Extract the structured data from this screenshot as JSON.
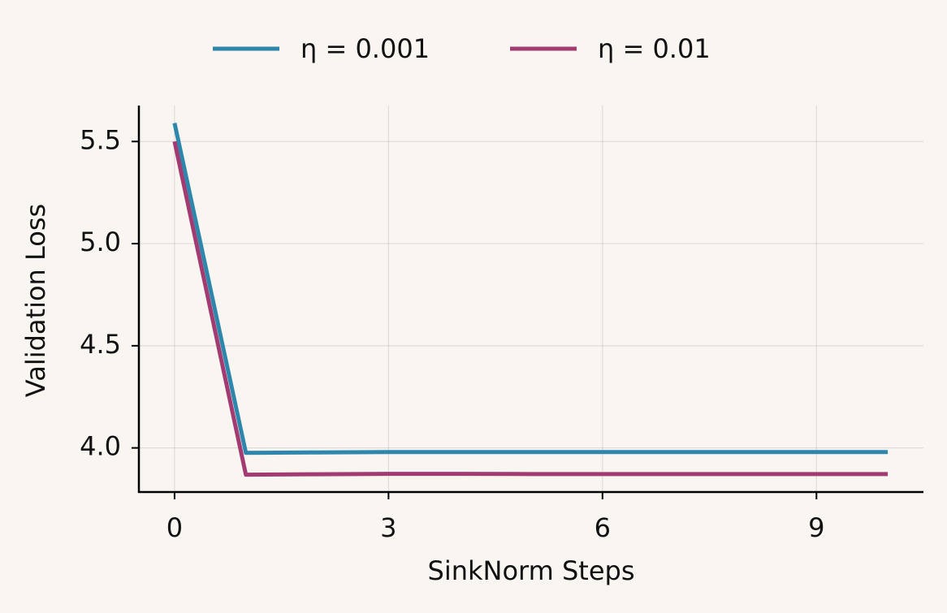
{
  "chart_data": {
    "type": "line",
    "x_label": "SinkNorm Steps",
    "y_label": "Validation Loss",
    "x": [
      0,
      1,
      2,
      3,
      4,
      5,
      6,
      7,
      8,
      9,
      10
    ],
    "series": [
      {
        "name": "η = 0.001",
        "color": "#2e86ab",
        "values": [
          5.59,
          3.976,
          3.978,
          3.98,
          3.98,
          3.98,
          3.98,
          3.98,
          3.98,
          3.98,
          3.98
        ]
      },
      {
        "name": "η = 0.01",
        "color": "#a23b72",
        "values": [
          5.5,
          3.869,
          3.871,
          3.873,
          3.873,
          3.872,
          3.872,
          3.872,
          3.872,
          3.872,
          3.872
        ]
      }
    ],
    "xlim": [
      -0.5,
      10.5
    ],
    "ylim": [
      3.784,
      5.676
    ],
    "xticks": [
      0,
      3,
      6,
      9
    ],
    "yticks": [
      {
        "value": 4.0,
        "label": "4.0"
      },
      4.5,
      {
        "value": 5.0,
        "label": "5.0"
      },
      5.5
    ],
    "grid": true,
    "legend": "top-center"
  }
}
